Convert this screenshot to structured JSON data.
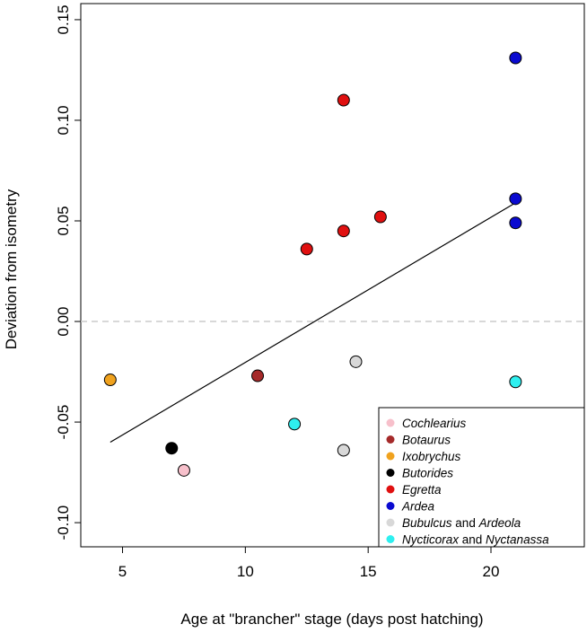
{
  "chart_data": {
    "type": "scatter",
    "title": "",
    "xlabel": "Age at \"brancher\" stage (days post hatching)",
    "ylabel": "Deviation from isometry",
    "xlim": [
      3.3,
      23.8
    ],
    "ylim": [
      -0.112,
      0.158
    ],
    "x_ticks": [
      5,
      10,
      15,
      20
    ],
    "y_ticks": [
      -0.1,
      -0.05,
      0.0,
      0.05,
      0.1,
      0.15
    ],
    "x_tick_labels": [
      "5",
      "10",
      "15",
      "20"
    ],
    "y_tick_labels": [
      "-0.10",
      "-0.05",
      "0.00",
      "0.05",
      "0.10",
      "0.15"
    ],
    "reference_line": {
      "y": 0.0,
      "style": "dashed",
      "color": "#cccccc"
    },
    "regression_line": {
      "x": [
        4.5,
        21.0
      ],
      "y": [
        -0.06,
        0.059
      ],
      "color": "#000000"
    },
    "series": [
      {
        "name": "Cochlearius",
        "parts": [
          {
            "text": "Cochlearius",
            "italic": true
          }
        ],
        "color": "#f7c0cb",
        "points": [
          [
            7.5,
            -0.074
          ]
        ]
      },
      {
        "name": "Botaurus",
        "parts": [
          {
            "text": "Botaurus",
            "italic": true
          }
        ],
        "color": "#a52a2a",
        "points": [
          [
            10.5,
            -0.027
          ]
        ]
      },
      {
        "name": "Ixobrychus",
        "parts": [
          {
            "text": "Ixobrychus",
            "italic": true
          }
        ],
        "color": "#f0a21e",
        "points": [
          [
            4.5,
            -0.029
          ]
        ]
      },
      {
        "name": "Butorides",
        "parts": [
          {
            "text": "Butorides",
            "italic": true
          }
        ],
        "color": "#000000",
        "points": [
          [
            7.0,
            -0.063
          ]
        ]
      },
      {
        "name": "Egretta",
        "parts": [
          {
            "text": "Egretta",
            "italic": true
          }
        ],
        "color": "#e01010",
        "points": [
          [
            12.5,
            0.036
          ],
          [
            14.0,
            0.045
          ],
          [
            15.5,
            0.052
          ],
          [
            14.0,
            0.11
          ]
        ]
      },
      {
        "name": "Ardea",
        "parts": [
          {
            "text": "Ardea",
            "italic": true
          }
        ],
        "color": "#0a0ad0",
        "points": [
          [
            21.0,
            0.131
          ],
          [
            21.0,
            0.061
          ],
          [
            21.0,
            0.049
          ]
        ]
      },
      {
        "name": "Bubulcus and Ardeola",
        "parts": [
          {
            "text": "Bubulcus",
            "italic": true
          },
          {
            "text": " and ",
            "italic": false
          },
          {
            "text": "Ardeola",
            "italic": true
          }
        ],
        "color": "#d8d8d8",
        "points": [
          [
            14.5,
            -0.02
          ],
          [
            14.0,
            -0.064
          ]
        ]
      },
      {
        "name": "Nycticorax and Nyctanassa",
        "parts": [
          {
            "text": "Nycticorax",
            "italic": true
          },
          {
            "text": " and ",
            "italic": false
          },
          {
            "text": "Nyctanassa",
            "italic": true
          }
        ],
        "color": "#2ef0f0",
        "points": [
          [
            12.0,
            -0.051
          ],
          [
            21.0,
            -0.03
          ]
        ]
      }
    ],
    "legend_position": "bottom-right",
    "grid": false
  }
}
